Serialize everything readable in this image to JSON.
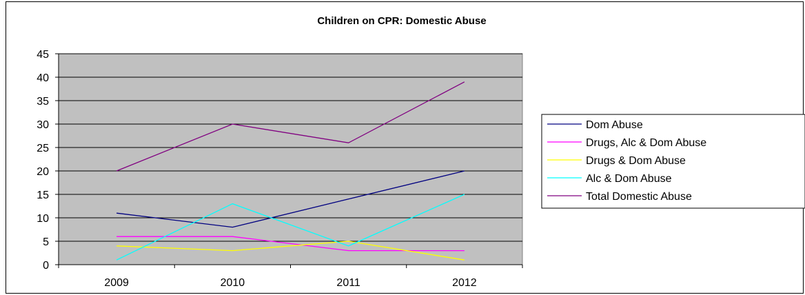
{
  "chart_data": {
    "type": "line",
    "title": "Children on CPR: Domestic Abuse",
    "xlabel": "",
    "ylabel": "",
    "categories": [
      "2009",
      "2010",
      "2011",
      "2012"
    ],
    "ylim": [
      0,
      45
    ],
    "yticks": [
      0,
      5,
      10,
      15,
      20,
      25,
      30,
      35,
      40,
      45
    ],
    "grid": true,
    "plot_background": "#c0c0c0",
    "legend_position": "right",
    "series": [
      {
        "name": "Dom Abuse",
        "color": "#000080",
        "values": [
          11,
          8,
          14,
          20
        ]
      },
      {
        "name": "Drugs, Alc & Dom Abuse",
        "color": "#ff00ff",
        "values": [
          6,
          6,
          3,
          3
        ]
      },
      {
        "name": "Drugs & Dom Abuse",
        "color": "#ffff00",
        "values": [
          4,
          3,
          5,
          1
        ]
      },
      {
        "name": "Alc & Dom Abuse",
        "color": "#00ffff",
        "values": [
          1,
          13,
          4,
          15
        ]
      },
      {
        "name": "Total Domestic Abuse",
        "color": "#800080",
        "values": [
          20,
          30,
          26,
          39
        ]
      }
    ]
  }
}
